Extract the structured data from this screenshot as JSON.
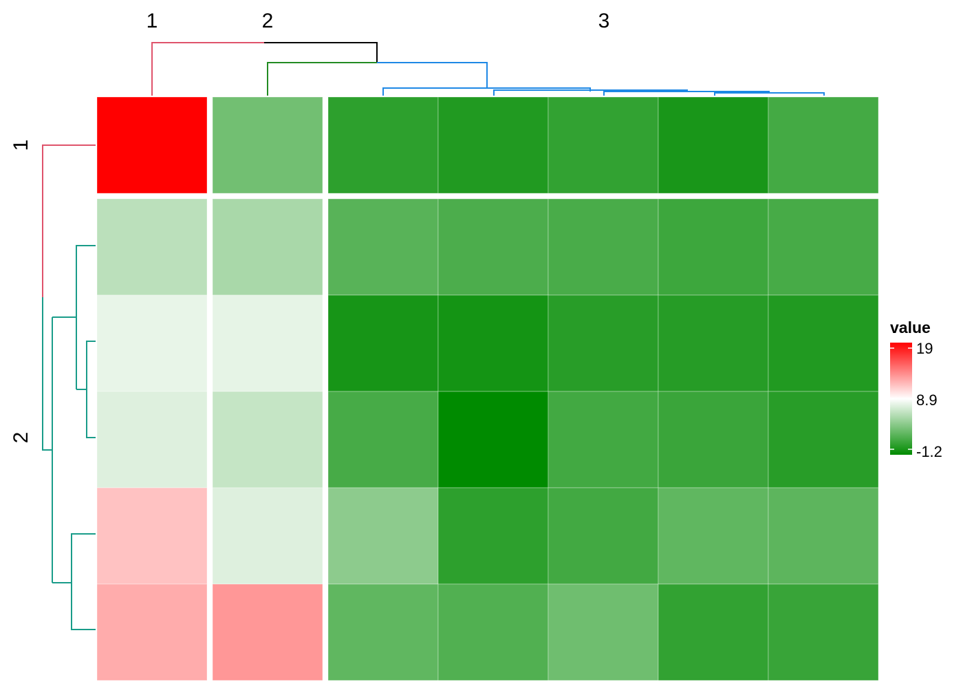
{
  "chart_data": {
    "type": "heatmap",
    "title": "",
    "column_split_labels": [
      "1",
      "2",
      "3"
    ],
    "row_split_labels": [
      "1",
      "2"
    ],
    "column_groups": [
      1,
      1,
      5
    ],
    "row_groups": [
      1,
      5
    ],
    "values": [
      [
        19.0,
        3.3,
        0.6,
        0.1,
        0.8,
        -0.2,
        1.5
      ],
      [
        6.2,
        5.5,
        2.3,
        1.8,
        1.7,
        1.2,
        1.6
      ],
      [
        8.0,
        7.9,
        -0.3,
        -0.4,
        0.4,
        0.3,
        0.1
      ],
      [
        7.6,
        6.6,
        1.6,
        -1.2,
        1.4,
        1.1,
        0.4
      ],
      [
        11.3,
        7.6,
        4.4,
        0.6,
        1.4,
        2.6,
        2.5
      ],
      [
        12.2,
        13.0,
        2.6,
        2.0,
        3.2,
        0.8,
        1.0
      ]
    ],
    "color_scale": {
      "min": -1.2,
      "mid": 8.9,
      "max": 19,
      "low_color": "#008B00",
      "mid_color": "#FFFFFF",
      "high_color": "#FF0000"
    },
    "legend": {
      "title": "value",
      "tick_labels": [
        "19",
        "8.9",
        "-1.2"
      ],
      "tick_values": [
        19,
        8.9,
        -1.2
      ],
      "placement": "right"
    },
    "dendrogram_colors": {
      "col_root": "#000000",
      "col_cluster_1": "#DF536B",
      "col_cluster_2": "#228B22",
      "col_cluster_3": "#1E88E5",
      "row_cluster_1": "#DF536B",
      "row_cluster_2": "#199C89"
    }
  }
}
